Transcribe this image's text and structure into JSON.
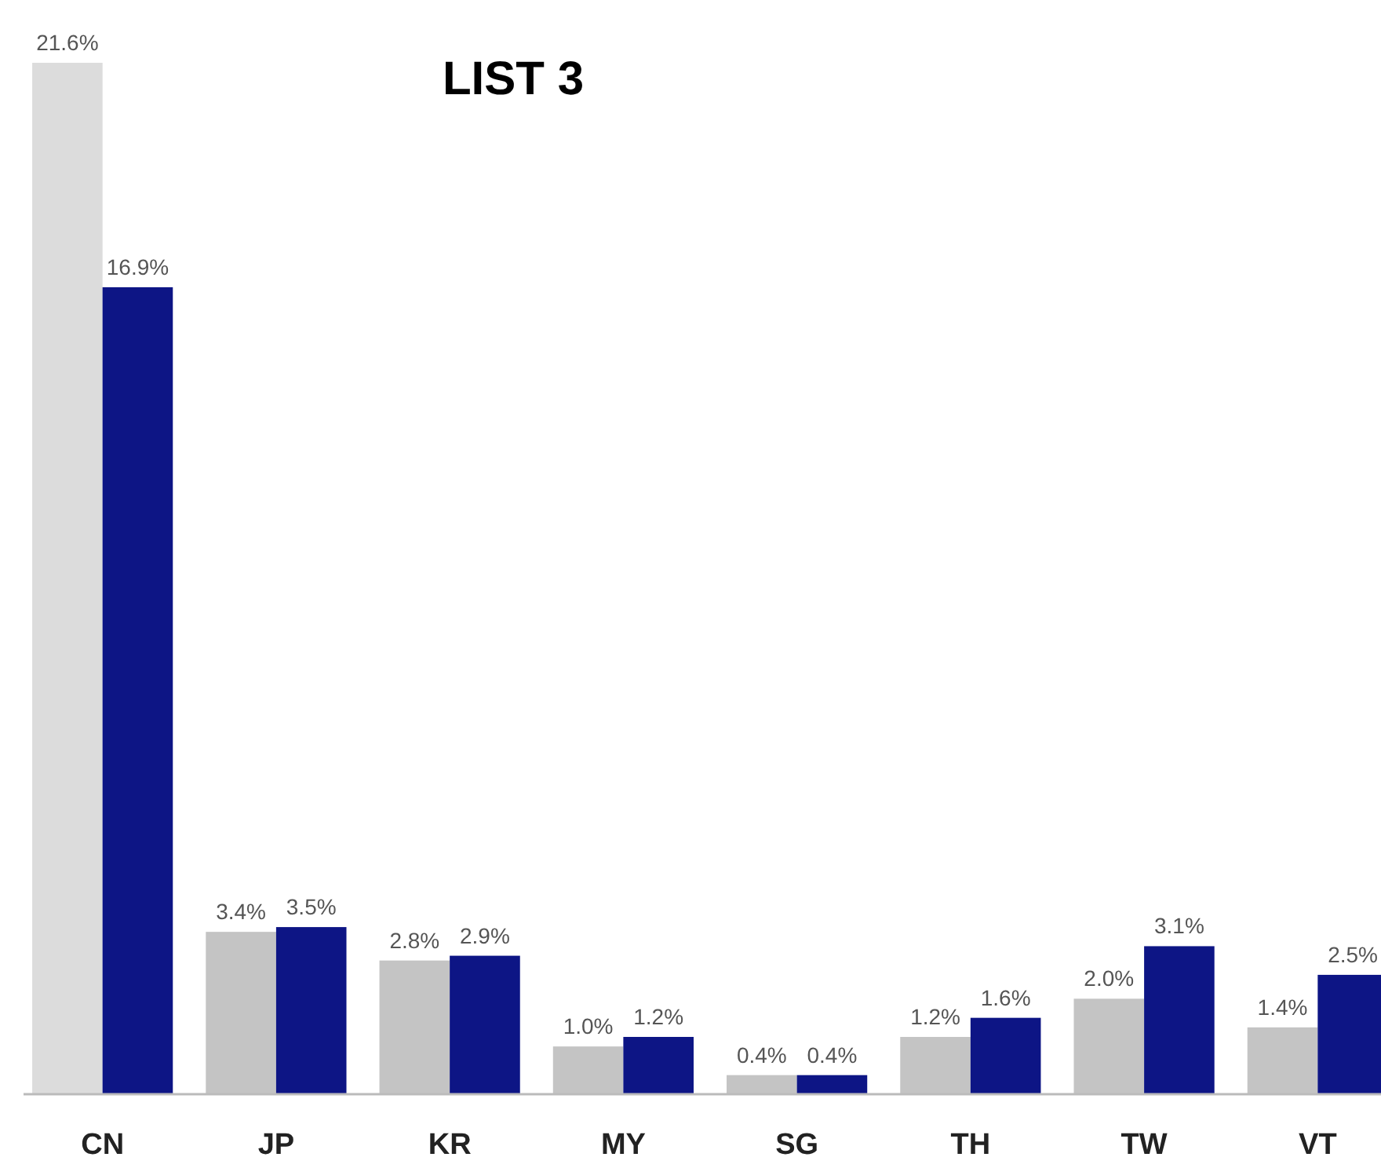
{
  "chart_data": {
    "type": "bar",
    "title": "LIST 3",
    "relative": false,
    "categories": [
      "CN",
      "JP",
      "KR",
      "MY",
      "SG",
      "TH",
      "TW",
      "VT"
    ],
    "series": [
      {
        "colors": [
          "#dcdcdc",
          "#c4c4c4",
          "#c4c4c4",
          "#c4c4c4",
          "#c4c4c4",
          "#c4c4c4",
          "#c4c4c4",
          "#c4c4c4"
        ],
        "values": [
          21.6,
          3.4,
          2.8,
          1.0,
          0.4,
          1.2,
          2.0,
          1.4
        ],
        "value_labels": [
          "21.6%",
          "3.4%",
          "2.8%",
          "1.0%",
          "0.4%",
          "1.2%",
          "2.0%",
          "1.4%"
        ]
      },
      {
        "color": "#0d1585",
        "values": [
          16.9,
          3.5,
          2.9,
          1.2,
          0.4,
          1.6,
          3.1,
          2.5
        ],
        "value_labels": [
          "16.9%",
          "3.5%",
          "2.9%",
          "1.2%",
          "0.4%",
          "1.6%",
          "3.1%",
          "2.5%"
        ]
      }
    ]
  }
}
